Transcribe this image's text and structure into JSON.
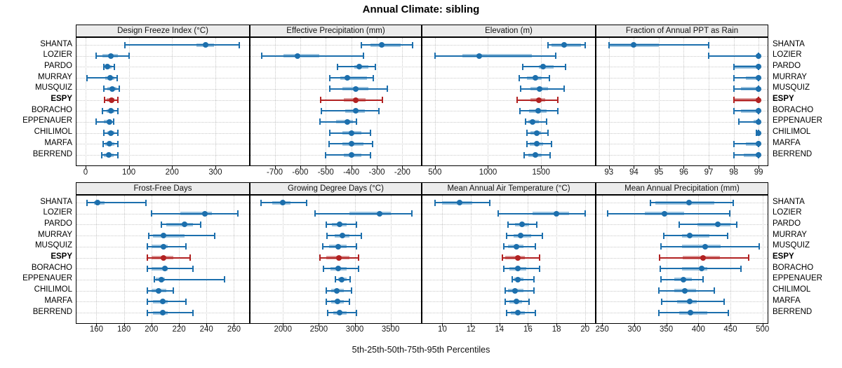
{
  "title": "Annual Climate: sibling",
  "footer": "5th-25th-50th-75th-95th Percentiles",
  "sites": [
    "SHANTA",
    "LOZIER",
    "PARDO",
    "MURRAY",
    "MUSQUIZ",
    "ESPY",
    "BORACHO",
    "EPPENAUER",
    "CHILIMOL",
    "MARFA",
    "BERREND"
  ],
  "highlighted_site": "ESPY",
  "colors": {
    "series": "#1c6fad",
    "series_band": "#9ec4df",
    "highlight": "#b22222",
    "highlight_band": "#dc9c9c",
    "strip_bg": "#ececec",
    "grid": "#c9c9c9",
    "panel_border": "#000000"
  },
  "chart_data": {
    "type": "dotplot-intervals",
    "layout": "2 rows x 4 columns trellis, shared site axis",
    "percentiles": [
      5,
      25,
      50,
      75,
      95
    ],
    "panels": [
      {
        "id": "design-freeze-index",
        "title": "Design Freeze Index (°C)",
        "xlim": [
          -21,
          378
        ],
        "ticks": [
          0,
          100,
          200,
          300
        ],
        "values": {
          "SHANTA": [
            91,
            256,
            277,
            297,
            356
          ],
          "LOZIER": [
            24,
            39,
            58,
            75,
            101
          ],
          "PARDO": [
            43,
            45,
            51,
            60,
            66
          ],
          "MURRAY": [
            3,
            46,
            57,
            66,
            73
          ],
          "MUSQUIZ": [
            43,
            51,
            62,
            71,
            78
          ],
          "ESPY": [
            44,
            49,
            60,
            67,
            75
          ],
          "BORACHO": [
            39,
            48,
            58,
            67,
            75
          ],
          "EPPENAUER": [
            25,
            43,
            56,
            60,
            65
          ],
          "CHILIMOL": [
            43,
            50,
            59,
            67,
            75
          ],
          "MARFA": [
            41,
            46,
            56,
            66,
            74
          ],
          "BERREND": [
            38,
            43,
            54,
            65,
            74
          ]
        }
      },
      {
        "id": "effective-precipitation",
        "title": "Effective Precipitation (mm)",
        "xlim": [
          -795,
          -127
        ],
        "ticks": [
          -700,
          -600,
          -500,
          -400,
          -300,
          -200
        ],
        "values": {
          "SHANTA": [
            -361,
            -326,
            -282,
            -207,
            -161
          ],
          "LOZIER": [
            -752,
            -666,
            -611,
            -525,
            -352
          ],
          "PARDO": [
            -454,
            -389,
            -369,
            -334,
            -307
          ],
          "MURRAY": [
            -484,
            -443,
            -416,
            -339,
            -313
          ],
          "MUSQUIZ": [
            -484,
            -434,
            -384,
            -334,
            -260
          ],
          "ESPY": [
            -520,
            -429,
            -384,
            -343,
            -279
          ],
          "BORACHO": [
            -516,
            -424,
            -384,
            -347,
            -291
          ],
          "EPPENAUER": [
            -523,
            -461,
            -416,
            -394,
            -380
          ],
          "CHILIMOL": [
            -484,
            -434,
            -400,
            -361,
            -325
          ],
          "MARFA": [
            -488,
            -434,
            -400,
            -352,
            -317
          ],
          "BERREND": [
            -502,
            -429,
            -398,
            -361,
            -325
          ]
        }
      },
      {
        "id": "elevation",
        "title": "Elevation (m)",
        "xlim": [
          382,
          2008
        ],
        "ticks": [
          500,
          1000,
          1500
        ],
        "values": {
          "SHANTA": [
            1563,
            1596,
            1720,
            1879,
            1916
          ],
          "LOZIER": [
            500,
            757,
            920,
            1415,
            1639
          ],
          "PARDO": [
            1328,
            1476,
            1520,
            1618,
            1731
          ],
          "MURRAY": [
            1291,
            1367,
            1443,
            1509,
            1581
          ],
          "MUSQUIZ": [
            1308,
            1400,
            1483,
            1563,
            1716
          ],
          "ESPY": [
            1273,
            1400,
            1476,
            1541,
            1657
          ],
          "BORACHO": [
            1302,
            1389,
            1472,
            1553,
            1657
          ],
          "EPPENAUER": [
            1356,
            1382,
            1422,
            1476,
            1552
          ],
          "CHILIMOL": [
            1367,
            1400,
            1459,
            1498,
            1563
          ],
          "MARFA": [
            1367,
            1395,
            1459,
            1520,
            1596
          ],
          "BERREND": [
            1339,
            1378,
            1443,
            1509,
            1585
          ]
        }
      },
      {
        "id": "fraction-ppt-rain",
        "title": "Fraction of Annual PPT as Rain",
        "xlim": [
          92.5,
          99.36
        ],
        "ticks": [
          93,
          94,
          95,
          96,
          97,
          98,
          99
        ],
        "values": {
          "SHANTA": [
            93,
            93,
            94,
            95,
            97
          ],
          "LOZIER": [
            97,
            98.9,
            99,
            99,
            99
          ],
          "PARDO": [
            98,
            98,
            99,
            99,
            99
          ],
          "MURRAY": [
            98,
            98.5,
            99,
            99,
            99
          ],
          "MUSQUIZ": [
            98,
            98.3,
            99,
            99,
            99
          ],
          "ESPY": [
            98,
            98,
            99,
            99,
            99
          ],
          "BORACHO": [
            98,
            98.3,
            99,
            99,
            99
          ],
          "EPPENAUER": [
            98.2,
            98.8,
            99,
            99,
            99
          ],
          "CHILIMOL": [
            98.9,
            99,
            99,
            99,
            99
          ],
          "MARFA": [
            98,
            98.5,
            99,
            99,
            99
          ],
          "BERREND": [
            98,
            98.4,
            99,
            99,
            99
          ]
        }
      },
      {
        "id": "frost-free-days",
        "title": "Frost-Free Days",
        "xlim": [
          145.5,
          271
        ],
        "ticks": [
          160,
          180,
          200,
          220,
          240,
          260
        ],
        "values": {
          "SHANTA": [
            153,
            158,
            161,
            166,
            196
          ],
          "LOZIER": [
            200,
            221,
            239,
            244,
            263
          ],
          "PARDO": [
            207,
            211,
            224,
            230,
            236
          ],
          "MURRAY": [
            198,
            201,
            209,
            224,
            246
          ],
          "MUSQUIZ": [
            197,
            200,
            209,
            212,
            225
          ],
          "ESPY": [
            197,
            200,
            209,
            216,
            228
          ],
          "BORACHO": [
            197,
            200,
            210,
            212,
            230
          ],
          "EPPENAUER": [
            202,
            203,
            207,
            210,
            253
          ],
          "CHILIMOL": [
            197,
            200,
            205,
            211,
            216
          ],
          "MARFA": [
            197,
            201,
            208,
            212,
            225
          ],
          "BERREND": [
            197,
            201,
            208,
            212,
            230
          ]
        }
      },
      {
        "id": "growing-degree-days",
        "title": "Growing Degree Days (°C)",
        "xlim": [
          1547,
          3924
        ],
        "ticks": [
          2000,
          2500,
          3000,
          3500
        ],
        "values": {
          "SHANTA": [
            1690,
            1850,
            2000,
            2100,
            2330
          ],
          "LOZIER": [
            2450,
            2930,
            3350,
            3500,
            3800
          ],
          "PARDO": [
            2600,
            2680,
            2790,
            2890,
            3020
          ],
          "MURRAY": [
            2610,
            2720,
            2830,
            2930,
            3090
          ],
          "MUSQUIZ": [
            2550,
            2640,
            2770,
            2890,
            3020
          ],
          "ESPY": [
            2520,
            2600,
            2780,
            2930,
            3050
          ],
          "BORACHO": [
            2560,
            2660,
            2770,
            2890,
            3050
          ],
          "EPPENAUER": [
            2730,
            2770,
            2820,
            2890,
            2940
          ],
          "CHILIMOL": [
            2600,
            2670,
            2750,
            2850,
            2960
          ],
          "MARFA": [
            2600,
            2670,
            2760,
            2850,
            2930
          ],
          "BERREND": [
            2620,
            2700,
            2790,
            2890,
            3020
          ]
        }
      },
      {
        "id": "mean-annual-air-temperature",
        "title": "Mean Annual Air Temperature (°C)",
        "xlim": [
          8.6,
          20.7
        ],
        "ticks": [
          10,
          12,
          14,
          16,
          18,
          20
        ],
        "values": {
          "SHANTA": [
            9.5,
            10.0,
            11.2,
            12.1,
            13.3
          ],
          "LOZIER": [
            13.9,
            16.3,
            18.0,
            18.9,
            20.0
          ],
          "PARDO": [
            14.6,
            15.1,
            15.6,
            16.1,
            16.6
          ],
          "MURRAY": [
            14.5,
            15.0,
            15.5,
            16.2,
            17.0
          ],
          "MUSQUIZ": [
            14.3,
            14.6,
            15.2,
            15.7,
            16.5
          ],
          "ESPY": [
            14.2,
            14.4,
            15.3,
            15.8,
            16.8
          ],
          "BORACHO": [
            14.3,
            14.7,
            15.3,
            15.9,
            16.8
          ],
          "EPPENAUER": [
            14.9,
            15.0,
            15.3,
            15.7,
            16.4
          ],
          "CHILIMOL": [
            14.4,
            14.6,
            15.1,
            15.7,
            16.4
          ],
          "MARFA": [
            14.4,
            14.7,
            15.2,
            15.6,
            16.1
          ],
          "BERREND": [
            14.5,
            14.8,
            15.3,
            15.8,
            16.5
          ]
        }
      },
      {
        "id": "mean-annual-precipitation",
        "title": "Mean Annual Precipitation (mm)",
        "xlim": [
          241,
          508
        ],
        "ticks": [
          250,
          300,
          350,
          400,
          450,
          500
        ],
        "values": {
          "SHANTA": [
            325,
            333,
            385,
            425,
            454
          ],
          "LOZIER": [
            258,
            316,
            347,
            378,
            449
          ],
          "PARDO": [
            370,
            399,
            430,
            450,
            460
          ],
          "MURRAY": [
            346,
            374,
            386,
            417,
            446
          ],
          "MUSQUIZ": [
            342,
            375,
            411,
            435,
            495
          ],
          "ESPY": [
            340,
            376,
            407,
            434,
            478
          ],
          "BORACHO": [
            341,
            374,
            405,
            414,
            466
          ],
          "EPPENAUER": [
            342,
            363,
            377,
            390,
            407
          ],
          "CHILIMOL": [
            338,
            363,
            379,
            396,
            425
          ],
          "MARFA": [
            343,
            367,
            386,
            397,
            440
          ],
          "BERREND": [
            338,
            370,
            388,
            414,
            447
          ]
        }
      }
    ]
  }
}
